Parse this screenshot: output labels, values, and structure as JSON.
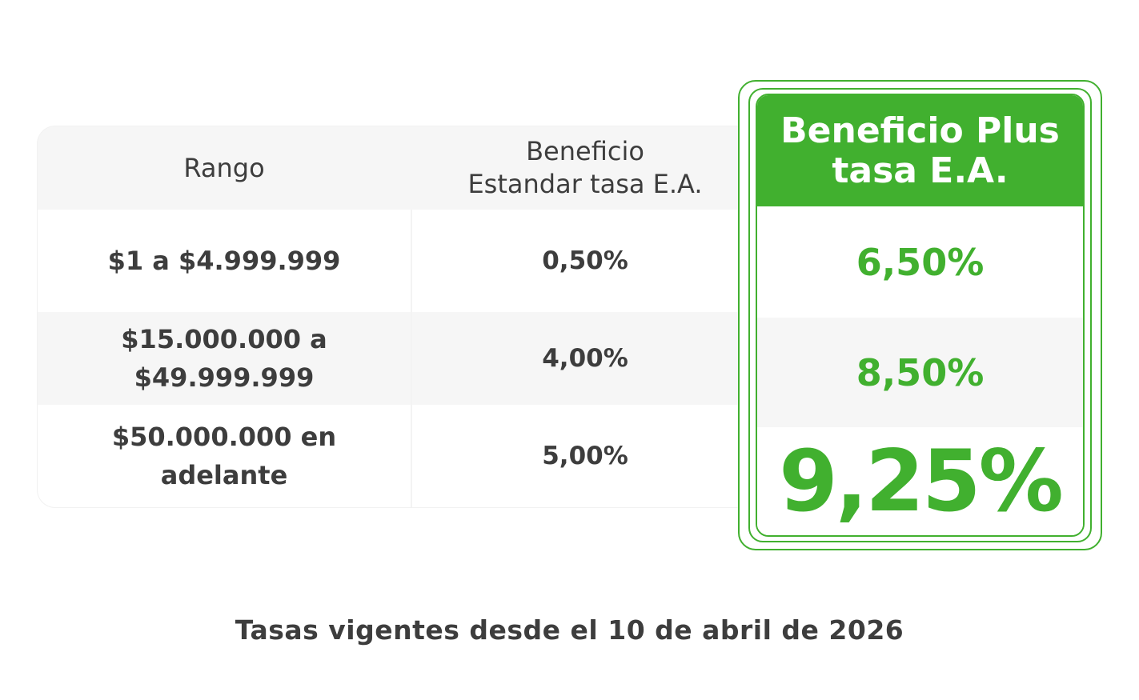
{
  "table": {
    "headers": {
      "range": "Rango",
      "standard_line1": "Beneficio",
      "standard_line2": "Estandar tasa E.A."
    },
    "rows": [
      {
        "range_line1": "$1 a $4.999.999",
        "range_line2": "",
        "standard": "0,50%"
      },
      {
        "range_line1": "$15.000.000 a",
        "range_line2": "$49.999.999",
        "standard": "4,00%"
      },
      {
        "range_line1": "$50.000.000 en",
        "range_line2": "adelante",
        "standard": "5,00%"
      }
    ]
  },
  "plus": {
    "title_line1": "Beneficio Plus",
    "title_line2": "tasa E.A.",
    "rates": [
      "6,50%",
      "8,50%",
      "9,25%"
    ]
  },
  "footnote": "Tasas vigentes desde el 10 de abril de 2026",
  "colors": {
    "accent": "#41b02f",
    "text": "#3d3d3d",
    "row_alt": "#f6f6f6"
  }
}
